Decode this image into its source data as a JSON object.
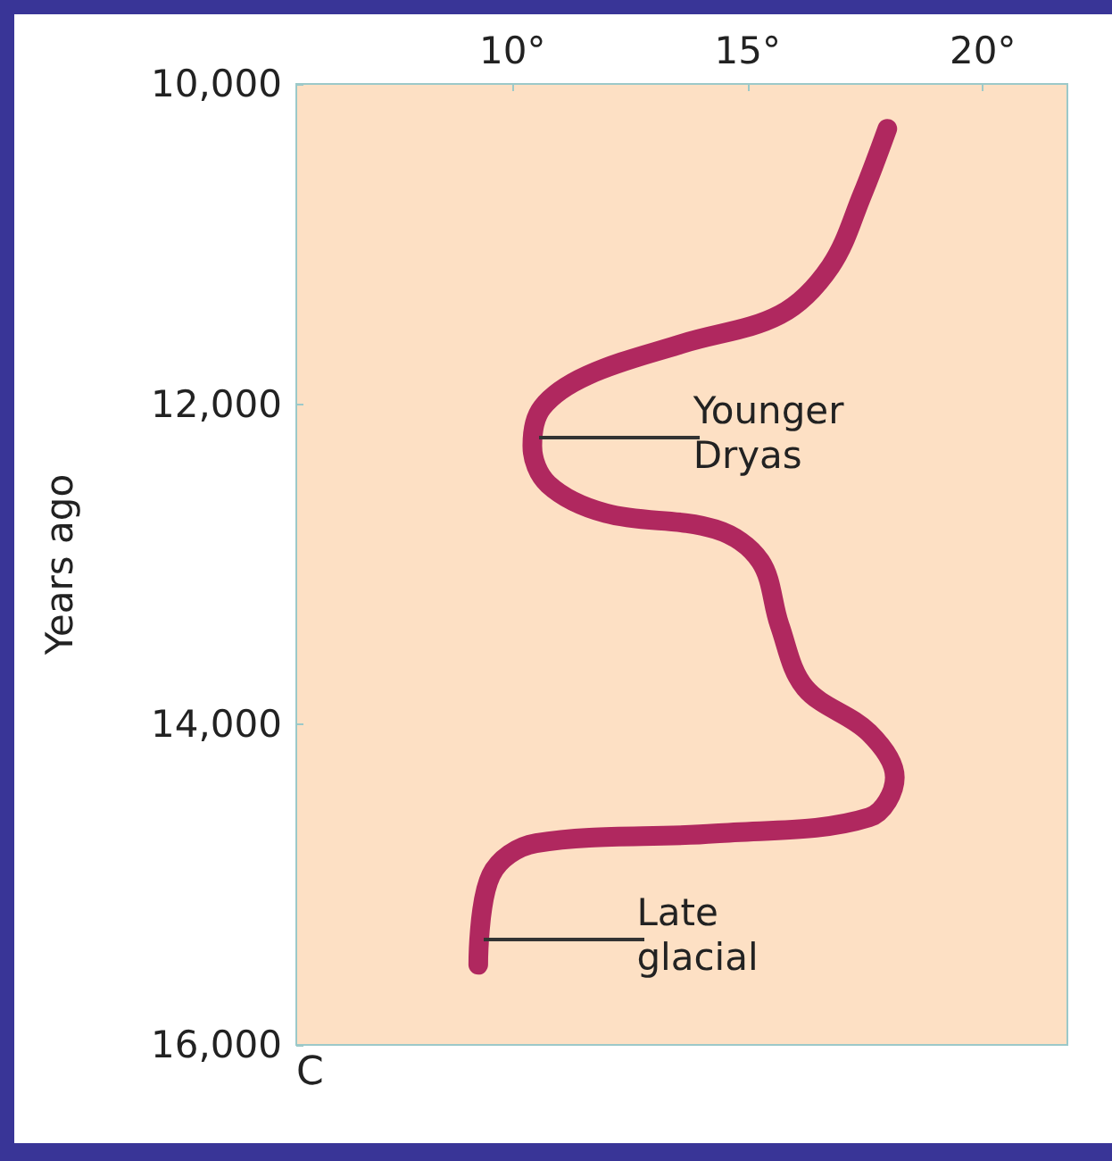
{
  "chart_data": {
    "type": "line",
    "ylabel": "Years ago",
    "xlim": [
      5.4,
      21.8
    ],
    "xticks": [
      {
        "value": 10,
        "label": "10°"
      },
      {
        "value": 15,
        "label": "15°"
      },
      {
        "value": 20,
        "label": "20°"
      }
    ],
    "ylim": [
      16000,
      10000
    ],
    "yticks": [
      {
        "value": 10000,
        "label": "10,000"
      },
      {
        "value": 12000,
        "label": "12,000"
      },
      {
        "value": 14000,
        "label": "14,000"
      },
      {
        "value": 16000,
        "label": "16,000"
      }
    ],
    "grid": false,
    "line_style": "solid",
    "series": [
      {
        "color": "#b0285f",
        "x": [
          17.97,
          17.44,
          16.76,
          15.69,
          13.63,
          11.59,
          10.63,
          10.42,
          10.76,
          11.98,
          14.31,
          15.27,
          15.68,
          16.22,
          17.58,
          18.13,
          17.58,
          14.31,
          10.5,
          9.54,
          9.27
        ],
        "values": [
          10280,
          10690,
          11140,
          11440,
          11620,
          11820,
          12020,
          12260,
          12500,
          12680,
          12780,
          12980,
          13380,
          13770,
          14050,
          14330,
          14580,
          14680,
          14740,
          14940,
          15500
        ]
      }
    ],
    "annotations": [
      {
        "text": "Younger Dryas",
        "x": 10.5,
        "y": 12210
      },
      {
        "text": "Late glacial",
        "x": 9.3,
        "y": 15340
      },
      "C"
    ]
  }
}
